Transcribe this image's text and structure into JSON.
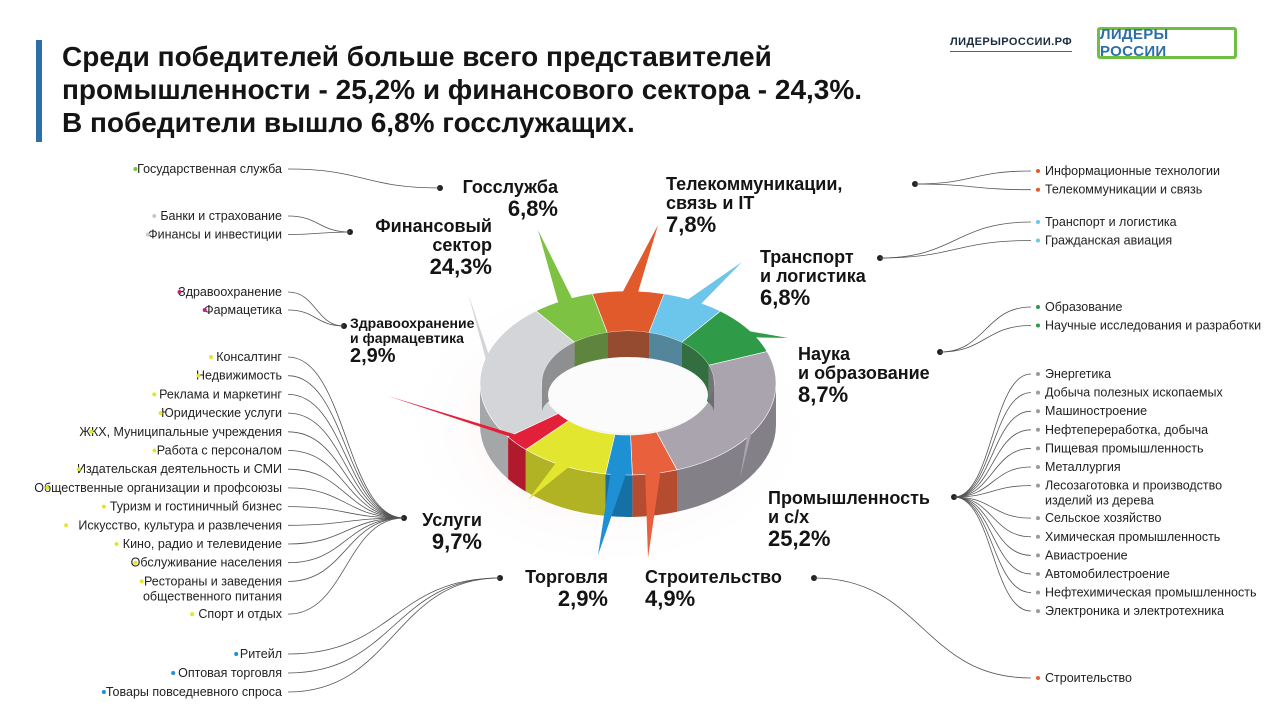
{
  "title_lines": [
    "Среди победителей больше всего представителей",
    "промышленности - 25,2% и финансового сектора - 24,3%.",
    "В победители вышло 6,8% госслужащих."
  ],
  "header": {
    "site": "ЛИДЕРЫРОССИИ.РФ",
    "logo_text": "ЛИДЕРЫ РОССИИ",
    "logo_color": "#6fbf44"
  },
  "chart_data": {
    "type": "pie",
    "style": "3d-donut",
    "unit": "%",
    "categories": [
      {
        "label_lines": [
          "Промышленность",
          "и с/х"
        ],
        "value": 25.2,
        "value_label": "25,2%",
        "color": "#a9a4ae",
        "subcategories": [
          "Энергетика",
          "Добыча полезных ископаемых",
          "Машиностроение",
          "Нефтепереработка, добыча",
          "Пищевая промышленность",
          "Металлургия",
          "Лесозаготовка и производство изделий из дерева",
          "Сельское хозяйство",
          "Химическая промышленность",
          "Авиастроение",
          "Автомобилестроение",
          "Нефтехимическая промышленность",
          "Электроника и электротехника"
        ],
        "subcategory_color": "#9a9a9a"
      },
      {
        "label_lines": [
          "Строительство"
        ],
        "value": 4.9,
        "value_label": "4,9%",
        "color": "#e8603c",
        "subcategories": [
          "Строительство"
        ],
        "subcategory_color": "#e8603c"
      },
      {
        "label_lines": [
          "Торговля"
        ],
        "value": 2.9,
        "value_label": "2,9%",
        "color": "#1e90d4",
        "subcategories": [
          "Ритейл",
          "Оптовая торговля",
          "Товары повседневного спроса"
        ],
        "subcategory_color": "#1e90d4"
      },
      {
        "label_lines": [
          "Услуги"
        ],
        "value": 9.7,
        "value_label": "9,7%",
        "color": "#e3e62e",
        "subcategories": [
          "Консалтинг",
          "Недвижимость",
          "Реклама и маркетинг",
          "Юридические услуги",
          "ЖКХ, Муниципальные учреждения",
          "Работа с персоналом",
          "Издательская деятельность и СМИ",
          "Общественные организации и профсоюзы",
          "Туризм и гостиничный бизнес",
          "Искусство, культура и развлечения",
          "Кино, радио и телевидение",
          "Обслуживание населения",
          "Рестораны и заведения общественного питания",
          "Спорт и отдых"
        ],
        "subcategory_color": "#e3e62e"
      },
      {
        "label_lines": [
          "Здравоохранение",
          "и фармацевтика"
        ],
        "value": 2.9,
        "value_label": "2,9%",
        "color": "#e3203a",
        "subcategories": [
          "Здравоохранение",
          "Фармацетика"
        ],
        "subcategory_color": "#c0208a"
      },
      {
        "label_lines": [
          "Финансовый",
          "сектор"
        ],
        "value": 24.3,
        "value_label": "24,3%",
        "color": "#d3d5d8",
        "subcategories": [
          "Банки и страхование",
          "Финансы и инвестиции"
        ],
        "subcategory_color": "#c8c8c8"
      },
      {
        "label_lines": [
          "Госслужба"
        ],
        "value": 6.8,
        "value_label": "6,8%",
        "color": "#7dc242",
        "subcategories": [
          "Государственная служба"
        ],
        "subcategory_color": "#7dc242"
      },
      {
        "label_lines": [
          "Телекоммуникации,",
          "связь и IT"
        ],
        "value": 7.8,
        "value_label": "7,8%",
        "color": "#e05a2b",
        "subcategories": [
          "Информационные технологии",
          "Телекоммуникации и связь"
        ],
        "subcategory_color": "#e05a2b"
      },
      {
        "label_lines": [
          "Транспорт",
          "и логистика"
        ],
        "value": 6.8,
        "value_label": "6,8%",
        "color": "#6cc5ea",
        "subcategories": [
          "Транспорт и логистика",
          "Гражданская авиация"
        ],
        "subcategory_color": "#6cc5ea"
      },
      {
        "label_lines": [
          "Наука",
          "и образование"
        ],
        "value": 8.7,
        "value_label": "8,7%",
        "color": "#2f9a47",
        "subcategories": [
          "Образование",
          "Научные исследования и разработки"
        ],
        "subcategory_color": "#2f9a47"
      }
    ]
  }
}
